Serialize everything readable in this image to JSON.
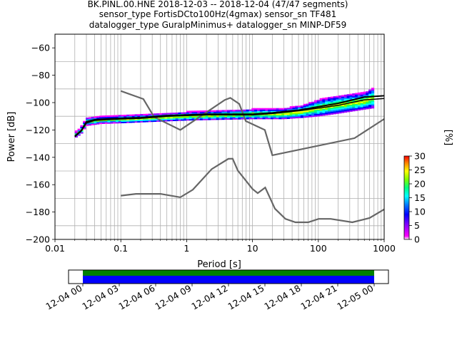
{
  "title_lines": [
    "BK.PINL.00.HNE   2018-12-03 -- 2018-12-04  (47/47 segments)",
    "sensor_type FortisDCto100Hz(4gmax) sensor_sn TF481",
    "datalogger_type GuralpMinimus+ datalogger_sn MINP-DF59"
  ],
  "colorbar": {
    "label": "[%]",
    "ticks": [
      "0",
      "5",
      "10",
      "15",
      "20",
      "25",
      "30"
    ],
    "range": [
      0,
      30
    ]
  },
  "timeline": {
    "ticks": [
      "12-04 00",
      "12-04 03",
      "12-04 06",
      "12-04 09",
      "12-04 12",
      "12-04 15",
      "12-04 18",
      "12-04 21",
      "12-05 00"
    ],
    "colors": {
      "coverage_top": "#008000",
      "coverage_bottom": "#0000ff"
    }
  },
  "chart_data": {
    "type": "heatmap",
    "xlabel": "Period [s]",
    "ylabel": "Power [dB]",
    "xscale": "log",
    "xlim": [
      0.01,
      1000
    ],
    "ylim": [
      -200,
      -50
    ],
    "xticks": [
      "0.01",
      "0.1",
      "1",
      "10",
      "100",
      "1000"
    ],
    "yticks": [
      "−60",
      "−80",
      "−100",
      "−120",
      "−140",
      "−160",
      "−180",
      "−200"
    ],
    "grid": true,
    "noise_models": {
      "high": {
        "x": [
          0.1,
          0.22,
          0.32,
          0.8,
          3.8,
          4.6,
          6.3,
          7.9,
          15.4,
          20,
          354.8,
          1000
        ],
        "y": [
          -91.5,
          -97.4,
          -110.5,
          -120,
          -98,
          -96.5,
          -101,
          -113.5,
          -120,
          -138.5,
          -126,
          -112
        ]
      },
      "low": {
        "x": [
          0.1,
          0.17,
          0.4,
          0.8,
          1.24,
          2.4,
          4.3,
          5,
          6,
          10,
          12,
          15.6,
          21.9,
          31.6,
          45,
          70,
          101,
          154,
          328,
          600,
          1000
        ],
        "y": [
          -168,
          -166.7,
          -166.7,
          -169.2,
          -163.7,
          -148.6,
          -141.1,
          -141,
          -149.7,
          -163.1,
          -166.2,
          -162.1,
          -177.5,
          -185,
          -187.5,
          -187.5,
          -185,
          -185,
          -187.5,
          -184.4,
          -178
        ]
      }
    },
    "mode": {
      "x": [
        0.02,
        0.025,
        0.03,
        0.04,
        0.06,
        0.1,
        0.2,
        0.5,
        1,
        2,
        5,
        10,
        20,
        50,
        100,
        200,
        500,
        1000
      ],
      "y": [
        -125,
        -121,
        -115,
        -113,
        -112.5,
        -112,
        -111.5,
        -110,
        -109.5,
        -109,
        -109,
        -109,
        -108,
        -106,
        -104,
        -102,
        -98,
        -97
      ]
    },
    "mean": {
      "x": [
        0.02,
        0.025,
        0.03,
        0.04,
        0.06,
        0.1,
        0.2,
        0.5,
        1,
        2,
        5,
        10,
        20,
        50,
        100,
        200,
        500,
        1000
      ],
      "y": [
        -124.5,
        -120.5,
        -114,
        -112.5,
        -112,
        -111.5,
        -111,
        -109.5,
        -109,
        -108.5,
        -108.5,
        -108.5,
        -107.5,
        -105.5,
        -103,
        -100.5,
        -96,
        -95
      ]
    },
    "band": {
      "x": [
        0.02,
        0.025,
        0.03,
        0.05,
        0.1,
        0.3,
        1,
        3,
        10,
        30,
        60,
        100,
        200,
        500,
        700
      ],
      "low": [
        -126,
        -123,
        -117,
        -115.5,
        -115,
        -114,
        -113,
        -112.5,
        -112,
        -112,
        -111,
        -110,
        -108,
        -105,
        -104
      ],
      "high": [
        -122,
        -118,
        -111,
        -110,
        -109.5,
        -108.5,
        -107,
        -106,
        -105,
        -104.5,
        -102,
        -98,
        -95,
        -93,
        -89
      ]
    }
  }
}
